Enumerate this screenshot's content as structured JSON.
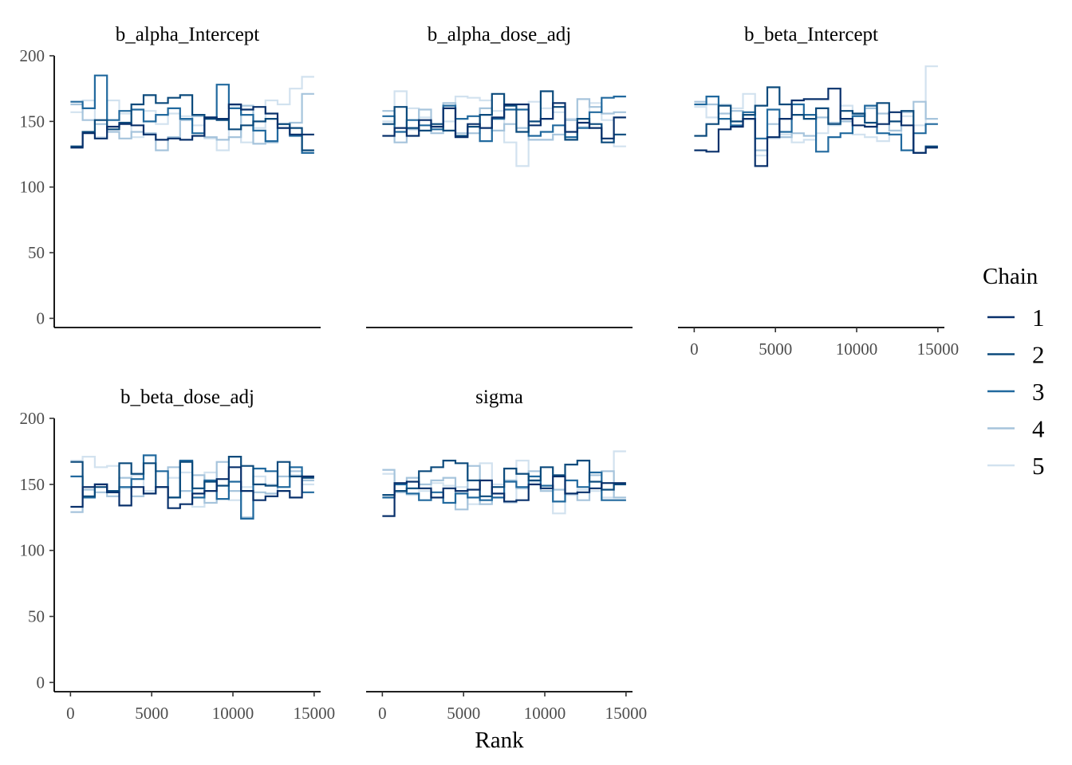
{
  "chart_data": {
    "type": "line",
    "subtype": "rank-histogram-trace",
    "xlabel": "Rank",
    "ylabel": "",
    "xlim": [
      -1000,
      15400
    ],
    "ylim": [
      -7,
      200
    ],
    "x_ticks": [
      0,
      5000,
      10000,
      15000
    ],
    "y_ticks": [
      0,
      50,
      100,
      150,
      200
    ],
    "grid": false,
    "legend": {
      "title": "Chain",
      "position": "right",
      "entries": [
        "1",
        "2",
        "3",
        "4",
        "5"
      ],
      "colors": [
        "#08306b",
        "#0b4a7c",
        "#21699e",
        "#a6c4dc",
        "#d2e2ef"
      ]
    },
    "bin_edges": [
      0,
      750,
      1500,
      2250,
      3000,
      3750,
      4500,
      5250,
      6000,
      6750,
      7500,
      8250,
      9000,
      9750,
      10500,
      11250,
      12000,
      12750,
      13500,
      14250,
      15000
    ],
    "panels": [
      {
        "title": "b_alpha_Intercept",
        "show_y_axis": true,
        "show_x_axis": false,
        "series": [
          {
            "name": "1",
            "values": [
              130,
              141,
              137,
              146,
              148,
              147,
              140,
              136,
              137,
              136,
              139,
              153,
              152,
              163,
              159,
              161,
              156,
              145,
              140,
              140
            ]
          },
          {
            "name": "2",
            "values": [
              131,
              142,
              151,
              144,
              149,
              163,
              170,
              164,
              168,
              170,
              155,
              152,
              151,
              144,
              147,
              150,
              152,
              148,
              145,
              128
            ]
          },
          {
            "name": "3",
            "values": [
              165,
              160,
              185,
              151,
              158,
              159,
              150,
              155,
              160,
              152,
              141,
              153,
              178,
              160,
              155,
              143,
              135,
              148,
              139,
              126
            ]
          },
          {
            "name": "4",
            "values": [
              163,
              151,
              148,
              142,
              137,
              142,
              141,
              128,
              138,
              151,
              154,
              138,
              136,
              138,
              162,
              133,
              134,
              145,
              149,
              171
            ]
          },
          {
            "name": "5",
            "values": [
              157,
              166,
              138,
              166,
              156,
              138,
              158,
              148,
              156,
              154,
              147,
              137,
              128,
              162,
              134,
              145,
              166,
              163,
              175,
              184
            ]
          }
        ]
      },
      {
        "title": "b_alpha_dose_adj",
        "show_y_axis": false,
        "show_x_axis": false,
        "series": [
          {
            "name": "1",
            "values": [
              139,
              145,
              139,
              151,
              146,
              160,
              138,
              148,
              145,
              153,
              163,
              163,
              147,
              152,
              164,
              142,
              149,
              145,
              137,
              153
            ]
          },
          {
            "name": "2",
            "values": [
              148,
              161,
              145,
              143,
              148,
              143,
              139,
              146,
              155,
              171,
              162,
              142,
              150,
              173,
              161,
              136,
              152,
              148,
              134,
              140
            ]
          },
          {
            "name": "3",
            "values": [
              154,
              142,
              151,
              147,
              144,
              162,
              152,
              154,
              135,
              152,
              159,
              159,
              139,
              142,
              147,
              138,
              145,
              157,
              168,
              169
            ]
          },
          {
            "name": "4",
            "values": [
              158,
              134,
              144,
              159,
              141,
              164,
              141,
              141,
              160,
              143,
              148,
              145,
              136,
              136,
              140,
              151,
              167,
              161,
              156,
              157
            ]
          },
          {
            "name": "5",
            "values": [
              150,
              173,
              160,
              153,
              146,
              150,
              169,
              168,
              166,
              158,
              134,
              116,
              165,
              160,
              157,
              152,
              146,
              164,
              151,
              131
            ]
          }
        ]
      },
      {
        "title": "b_beta_Intercept",
        "show_y_axis": false,
        "show_x_axis": true,
        "series": [
          {
            "name": "1",
            "values": [
              128,
              127,
              144,
              146,
              152,
              116,
              138,
              152,
              166,
              167,
              167,
              175,
              152,
              147,
              146,
              148,
              157,
              147,
              126,
              130
            ]
          },
          {
            "name": "2",
            "values": [
              139,
              148,
              162,
              150,
              155,
              162,
              176,
              163,
              155,
              152,
              160,
              148,
              158,
              156,
              149,
              164,
              150,
              158,
              126,
              131
            ]
          },
          {
            "name": "3",
            "values": [
              163,
              169,
              152,
              147,
              157,
              137,
              159,
              142,
              163,
              155,
              127,
              138,
              141,
              154,
              162,
              141,
              140,
              128,
              141,
              148
            ]
          },
          {
            "name": "4",
            "values": [
              165,
              163,
              156,
              158,
              152,
              128,
              148,
              138,
              141,
              139,
              153,
              149,
              150,
              155,
              160,
              156,
              143,
              157,
              165,
              152
            ]
          },
          {
            "name": "5",
            "values": [
              161,
              153,
              163,
              160,
              171,
              124,
              137,
              140,
              134,
              136,
              141,
              147,
              162,
              140,
              138,
              135,
              140,
              154,
              147,
              192
            ]
          }
        ]
      },
      {
        "title": "b_beta_dose_adj",
        "show_y_axis": true,
        "show_x_axis": true,
        "series": [
          {
            "name": "1",
            "values": [
              133,
              148,
              150,
              144,
              134,
              148,
              143,
              148,
              132,
              135,
              143,
              145,
              154,
              163,
              145,
              138,
              141,
              145,
              140,
              156
            ]
          },
          {
            "name": "2",
            "values": [
              167,
              141,
              148,
              145,
              166,
              158,
              166,
              148,
              140,
              167,
              147,
              152,
              149,
              171,
              164,
              150,
              149,
              167,
              156,
              155
            ]
          },
          {
            "name": "3",
            "values": [
              156,
              140,
              150,
              144,
              148,
              154,
              172,
              160,
              140,
              168,
              140,
              153,
              139,
              152,
              124,
              162,
              160,
              148,
              163,
              144
            ]
          },
          {
            "name": "4",
            "values": [
              129,
              146,
              144,
              141,
              155,
              141,
              143,
              148,
              163,
              145,
              157,
              136,
              167,
              145,
              125,
              144,
              143,
              156,
              160,
              153
            ]
          },
          {
            "name": "5",
            "values": [
              168,
              171,
              163,
              164,
              147,
              157,
              145,
              160,
              155,
              159,
              133,
              159,
              149,
              138,
              148,
              156,
              150,
              148,
              157,
              150
            ]
          }
        ]
      },
      {
        "title": "sigma",
        "show_y_axis": false,
        "show_x_axis": true,
        "series": [
          {
            "name": "1",
            "values": [
              126,
              151,
              152,
              147,
              140,
              147,
              145,
              146,
              153,
              143,
              137,
              138,
              150,
              147,
              156,
              143,
              144,
              147,
              151,
              151
            ]
          },
          {
            "name": "2",
            "values": [
              142,
              145,
              147,
              160,
              163,
              168,
              166,
              153,
              141,
              148,
              162,
              158,
              153,
              163,
              157,
              165,
              168,
              152,
              146,
              150
            ]
          },
          {
            "name": "3",
            "values": [
              140,
              150,
              143,
              138,
              144,
              136,
              143,
              140,
              138,
              140,
              152,
              148,
              156,
              149,
              137,
              153,
              148,
              159,
              138,
              138
            ]
          },
          {
            "name": "4",
            "values": [
              161,
              144,
              155,
              150,
              153,
              155,
              131,
              164,
              135,
              140,
              153,
              147,
              160,
              145,
              146,
              143,
              138,
              157,
              160,
              140
            ]
          },
          {
            "name": "5",
            "values": [
              158,
              145,
              142,
              145,
              151,
              149,
              148,
              135,
              166,
              150,
              136,
              168,
              152,
              147,
              128,
              142,
              146,
              145,
              140,
              175
            ]
          }
        ]
      }
    ]
  }
}
